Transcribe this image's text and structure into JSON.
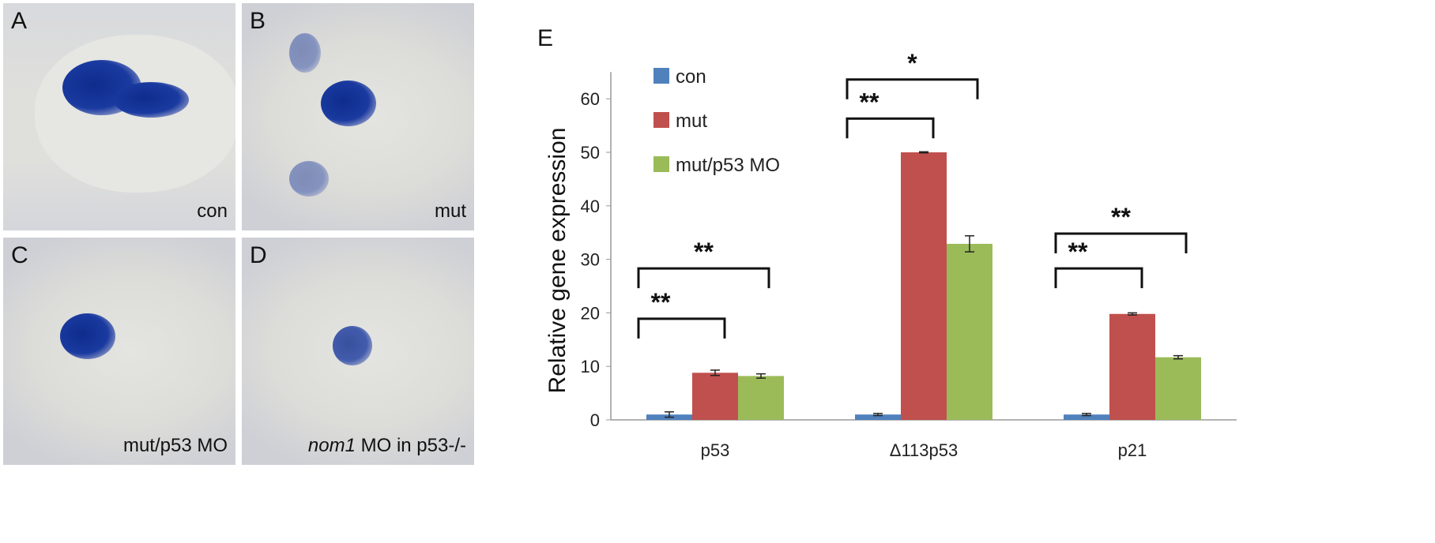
{
  "panels": [
    {
      "letter": "A",
      "caption": "con"
    },
    {
      "letter": "B",
      "caption": "mut"
    },
    {
      "letter": "C",
      "caption": "mut/p53 MO"
    },
    {
      "letter": "D",
      "caption_italic": "nom1",
      "caption": " MO in p53-/-"
    }
  ],
  "chart_data": {
    "panel_letter": "E",
    "type": "bar",
    "ylabel": "Relative gene expression",
    "ylim": [
      0,
      65
    ],
    "yticks": [
      0,
      10,
      20,
      30,
      40,
      50,
      60
    ],
    "categories": [
      "p53",
      "Δ113p53",
      "p21"
    ],
    "series": [
      {
        "name": "con",
        "color": "#4f81bd",
        "values": [
          1.0,
          1.0,
          1.0
        ],
        "errors": [
          0.5,
          0.2,
          0.2
        ]
      },
      {
        "name": "mut",
        "color": "#c0504d",
        "values": [
          8.8,
          50.0,
          19.8
        ],
        "errors": [
          0.5,
          0.1,
          0.2
        ]
      },
      {
        "name": "mut/p53 MO",
        "color": "#9bbb59",
        "values": [
          8.2,
          32.9,
          11.7
        ],
        "errors": [
          0.4,
          1.5,
          0.3
        ]
      }
    ],
    "significance": [
      {
        "category": "p53",
        "compare": "con vs mut",
        "label": "**"
      },
      {
        "category": "p53",
        "compare": "con vs mut/p53 MO",
        "label": "**"
      },
      {
        "category": "Δ113p53",
        "compare": "con vs mut",
        "label": "**"
      },
      {
        "category": "Δ113p53",
        "compare": "con vs mut/p53 MO",
        "label": "*"
      },
      {
        "category": "p21",
        "compare": "con vs mut",
        "label": "**"
      },
      {
        "category": "p21",
        "compare": "con vs mut/p53 MO",
        "label": "**"
      }
    ],
    "legend_placement": "top-left"
  }
}
